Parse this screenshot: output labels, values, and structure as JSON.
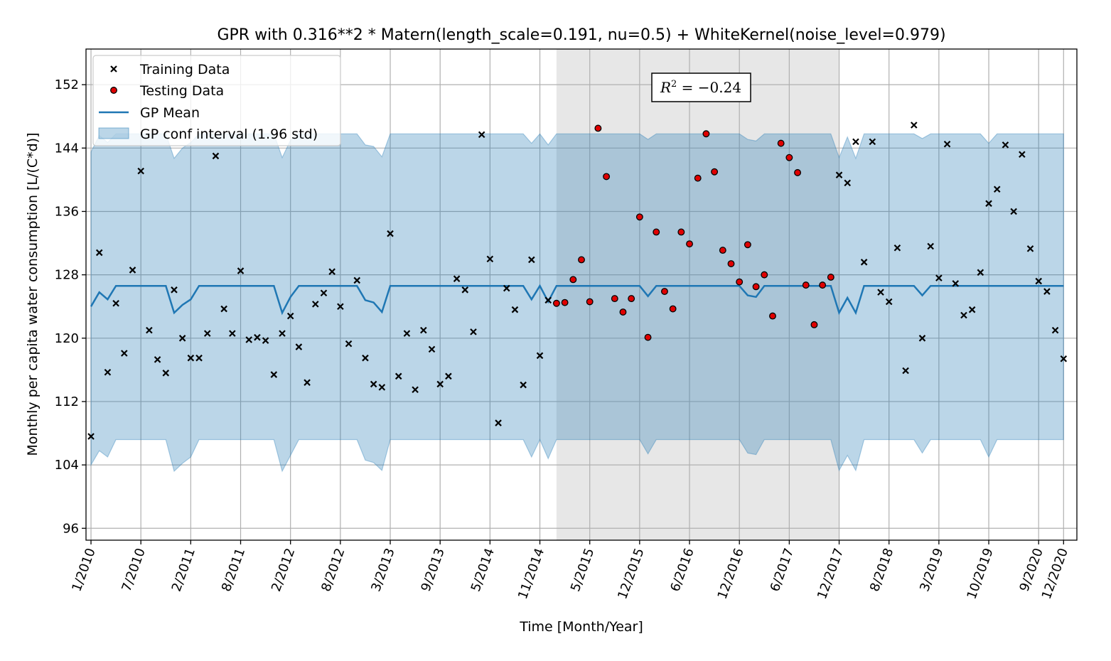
{
  "chart_data": {
    "type": "scatter",
    "title": "GPR with 0.316**2 * Matern(length_scale=0.191, nu=0.5) + WhiteKernel(noise_level=0.979)",
    "xlabel": "Time [Month/Year]",
    "ylabel": "Monthly per capita water consumption [L/(C*d)]",
    "ylim": [
      94.5,
      156.5
    ],
    "yticks": [
      96,
      104,
      112,
      120,
      128,
      136,
      144,
      152
    ],
    "xlim": [
      -0.6,
      118.6
    ],
    "xticks": [
      0,
      6,
      12,
      18,
      24,
      30,
      36,
      42,
      48,
      54,
      60,
      66,
      72,
      78,
      84,
      90,
      96,
      102,
      108,
      114,
      117
    ],
    "xtick_labels": [
      "1/2010",
      "7/2010",
      "2/2011",
      "8/2011",
      "2/2012",
      "8/2012",
      "3/2013",
      "9/2013",
      "5/2014",
      "11/2014",
      "5/2015",
      "12/2015",
      "6/2016",
      "12/2016",
      "6/2017",
      "12/2017",
      "8/2018",
      "3/2019",
      "10/2019",
      "9/2020",
      "12/2020"
    ],
    "grid": true,
    "legend_position": "top-left",
    "test_region": [
      56,
      90
    ],
    "annotation": {
      "label": "R",
      "superscript": "2",
      "text": " = −0.24"
    },
    "colors": {
      "mean": "#1f77b4",
      "band": "#1f77b4",
      "test_region": "#d3d3d3",
      "testing": "#e00000"
    },
    "series": [
      {
        "name": "Training Data",
        "marker": "x",
        "x": [
          0,
          1,
          2,
          3,
          4,
          5,
          6,
          7,
          8,
          9,
          10,
          11,
          12,
          13,
          14,
          15,
          16,
          17,
          18,
          19,
          20,
          21,
          22,
          23,
          24,
          25,
          26,
          27,
          28,
          29,
          30,
          31,
          32,
          33,
          34,
          35,
          36,
          37,
          38,
          39,
          40,
          41,
          42,
          43,
          44,
          45,
          46,
          47,
          48,
          49,
          50,
          51,
          52,
          53,
          54,
          55,
          90,
          91,
          92,
          93,
          94,
          95,
          96,
          97,
          98,
          99,
          100,
          101,
          102,
          103,
          104,
          105,
          106,
          107,
          108,
          109,
          110,
          111,
          112,
          113,
          114,
          115,
          116,
          117
        ],
        "y": [
          107.6,
          130.8,
          115.7,
          124.4,
          118.1,
          128.6,
          141.1,
          121.0,
          117.3,
          115.6,
          126.1,
          120.0,
          117.5,
          117.5,
          120.6,
          143.0,
          123.7,
          120.6,
          128.5,
          119.8,
          120.1,
          119.7,
          115.4,
          120.6,
          122.8,
          118.9,
          114.4,
          124.3,
          125.7,
          128.4,
          124.0,
          119.3,
          127.3,
          117.5,
          114.2,
          113.8,
          133.2,
          115.2,
          120.6,
          113.5,
          121.0,
          118.6,
          114.2,
          115.2,
          127.5,
          126.1,
          120.8,
          145.7,
          130.0,
          109.3,
          126.3,
          123.6,
          114.1,
          129.9,
          117.8,
          124.8,
          140.6,
          139.6,
          144.8,
          129.6,
          144.8,
          125.8,
          124.6,
          131.4,
          115.9,
          146.9,
          120.0,
          131.6,
          127.6,
          144.5,
          126.9,
          122.9,
          123.6,
          128.3,
          137.0,
          138.8,
          144.4,
          136.0,
          143.2,
          131.3,
          127.2,
          125.9,
          121.0,
          117.4
        ],
        "x_order_note": ""
      },
      {
        "name": "Testing Data",
        "marker": "o",
        "x": [
          56,
          57,
          58,
          59,
          60,
          61,
          62,
          63,
          64,
          65,
          66,
          67,
          68,
          69,
          70,
          71,
          72,
          73,
          74,
          75,
          76,
          77,
          78,
          79,
          80,
          81,
          82,
          83,
          84,
          85,
          86,
          87,
          88,
          89
        ],
        "y": [
          124.4,
          124.5,
          127.4,
          129.9,
          124.6,
          146.5,
          140.4,
          125.0,
          123.3,
          125.0,
          135.3,
          120.1,
          133.4,
          125.9,
          123.7,
          133.4,
          131.9,
          140.2,
          145.8,
          141.0,
          131.1,
          129.4,
          127.1,
          131.8,
          126.5,
          128.0,
          122.8,
          144.6,
          142.8,
          140.9,
          126.7,
          121.7,
          126.7,
          127.7
        ],
        "y_note": ""
      },
      {
        "name": "GP Mean",
        "marker": "line",
        "x": [
          0,
          1,
          2,
          3,
          4,
          5,
          6,
          7,
          8,
          9,
          10,
          11,
          12,
          13,
          14,
          15,
          16,
          17,
          18,
          19,
          20,
          21,
          22,
          23,
          24,
          25,
          26,
          27,
          28,
          29,
          30,
          31,
          32,
          33,
          34,
          35,
          36,
          37,
          38,
          39,
          40,
          41,
          42,
          43,
          44,
          45,
          46,
          47,
          48,
          49,
          50,
          51,
          52,
          53,
          54,
          55,
          56,
          57,
          58,
          59,
          60,
          61,
          62,
          63,
          64,
          65,
          66,
          67,
          68,
          69,
          70,
          71,
          72,
          73,
          74,
          75,
          76,
          77,
          78,
          79,
          80,
          81,
          82,
          83,
          84,
          85,
          86,
          87,
          88,
          89,
          90,
          91,
          92,
          93,
          94,
          95,
          96,
          97,
          98,
          99,
          100,
          101,
          102,
          103,
          104,
          105,
          106,
          107,
          108,
          109,
          110,
          111,
          112,
          113,
          114,
          115,
          116,
          117
        ],
        "y": [
          124.0,
          125.8,
          124.9,
          126.6,
          126.6,
          126.6,
          126.6,
          126.6,
          126.6,
          126.6,
          123.2,
          124.2,
          124.9,
          126.6,
          126.6,
          126.6,
          126.6,
          126.6,
          126.6,
          126.6,
          126.6,
          126.6,
          126.6,
          123.2,
          125.2,
          126.6,
          126.6,
          126.6,
          126.6,
          126.6,
          126.6,
          126.6,
          126.6,
          124.8,
          124.5,
          123.3,
          126.6,
          126.6,
          126.6,
          126.6,
          126.6,
          126.6,
          126.6,
          126.6,
          126.6,
          126.6,
          126.6,
          126.6,
          126.6,
          126.6,
          126.6,
          126.6,
          126.6,
          124.9,
          126.6,
          124.6,
          126.6,
          126.6,
          126.6,
          126.6,
          126.6,
          126.6,
          126.6,
          126.6,
          126.6,
          126.6,
          126.6,
          125.3,
          126.6,
          126.6,
          126.6,
          126.6,
          126.6,
          126.6,
          126.6,
          126.6,
          126.6,
          126.6,
          126.6,
          125.4,
          125.2,
          126.6,
          126.6,
          126.6,
          126.6,
          126.6,
          126.6,
          126.6,
          126.6,
          126.6,
          123.2,
          125.1,
          123.2,
          126.6,
          126.6,
          126.6,
          126.6,
          126.6,
          126.6,
          126.6,
          125.4,
          126.6,
          126.6,
          126.6,
          126.6,
          126.6,
          126.6,
          126.6,
          126.6,
          126.6,
          126.6,
          126.6,
          126.6,
          126.6,
          126.6,
          126.6,
          126.6,
          126.6
        ]
      },
      {
        "name": "GP conf interval (1.96 std)",
        "marker": "band",
        "upper": [
          143.5,
          145.6,
          144.7,
          145.8,
          145.8,
          145.8,
          145.8,
          145.8,
          145.8,
          145.8,
          142.7,
          144.0,
          144.7,
          145.8,
          145.8,
          145.8,
          145.8,
          145.8,
          145.8,
          145.8,
          145.8,
          145.8,
          145.8,
          142.8,
          145.0,
          145.8,
          145.8,
          145.8,
          145.8,
          145.8,
          145.8,
          145.8,
          145.8,
          144.4,
          144.2,
          142.9,
          145.8,
          145.8,
          145.8,
          145.8,
          145.8,
          145.8,
          145.8,
          145.8,
          145.8,
          145.8,
          145.8,
          145.8,
          145.8,
          145.8,
          145.8,
          145.8,
          145.8,
          144.6,
          145.8,
          144.4,
          145.8,
          145.8,
          145.8,
          145.8,
          145.8,
          145.8,
          145.8,
          145.8,
          145.8,
          145.8,
          145.8,
          145.1,
          145.8,
          145.8,
          145.8,
          145.8,
          145.8,
          145.8,
          145.8,
          145.8,
          145.8,
          145.8,
          145.8,
          145.1,
          144.9,
          145.8,
          145.8,
          145.8,
          145.8,
          145.8,
          145.8,
          145.8,
          145.8,
          145.8,
          142.8,
          145.4,
          142.7,
          145.8,
          145.8,
          145.8,
          145.8,
          145.8,
          145.8,
          145.8,
          145.2,
          145.8,
          145.8,
          145.8,
          145.8,
          145.8,
          145.8,
          145.8,
          144.6,
          145.8,
          145.8,
          145.8,
          145.8,
          145.8,
          145.8,
          145.8,
          145.8,
          145.8
        ],
        "lower": [
          104.0,
          105.8,
          105.0,
          107.2,
          107.2,
          107.2,
          107.2,
          107.2,
          107.2,
          107.2,
          103.2,
          104.2,
          105.0,
          107.2,
          107.2,
          107.2,
          107.2,
          107.2,
          107.2,
          107.2,
          107.2,
          107.2,
          107.2,
          103.2,
          105.2,
          107.2,
          107.2,
          107.2,
          107.2,
          107.2,
          107.2,
          107.2,
          107.2,
          104.6,
          104.3,
          103.3,
          107.2,
          107.2,
          107.2,
          107.2,
          107.2,
          107.2,
          107.2,
          107.2,
          107.2,
          107.2,
          107.2,
          107.2,
          107.2,
          107.2,
          107.2,
          107.2,
          107.2,
          105.0,
          107.2,
          104.8,
          107.2,
          107.2,
          107.2,
          107.2,
          107.2,
          107.2,
          107.2,
          107.2,
          107.2,
          107.2,
          107.2,
          105.4,
          107.2,
          107.2,
          107.2,
          107.2,
          107.2,
          107.2,
          107.2,
          107.2,
          107.2,
          107.2,
          107.2,
          105.5,
          105.3,
          107.2,
          107.2,
          107.2,
          107.2,
          107.2,
          107.2,
          107.2,
          107.2,
          107.2,
          103.3,
          105.2,
          103.3,
          107.2,
          107.2,
          107.2,
          107.2,
          107.2,
          107.2,
          107.2,
          105.5,
          107.2,
          107.2,
          107.2,
          107.2,
          107.2,
          107.2,
          107.2,
          105.0,
          107.2,
          107.2,
          107.2,
          107.2,
          107.2,
          107.2,
          107.2,
          107.2,
          107.2
        ]
      }
    ]
  }
}
